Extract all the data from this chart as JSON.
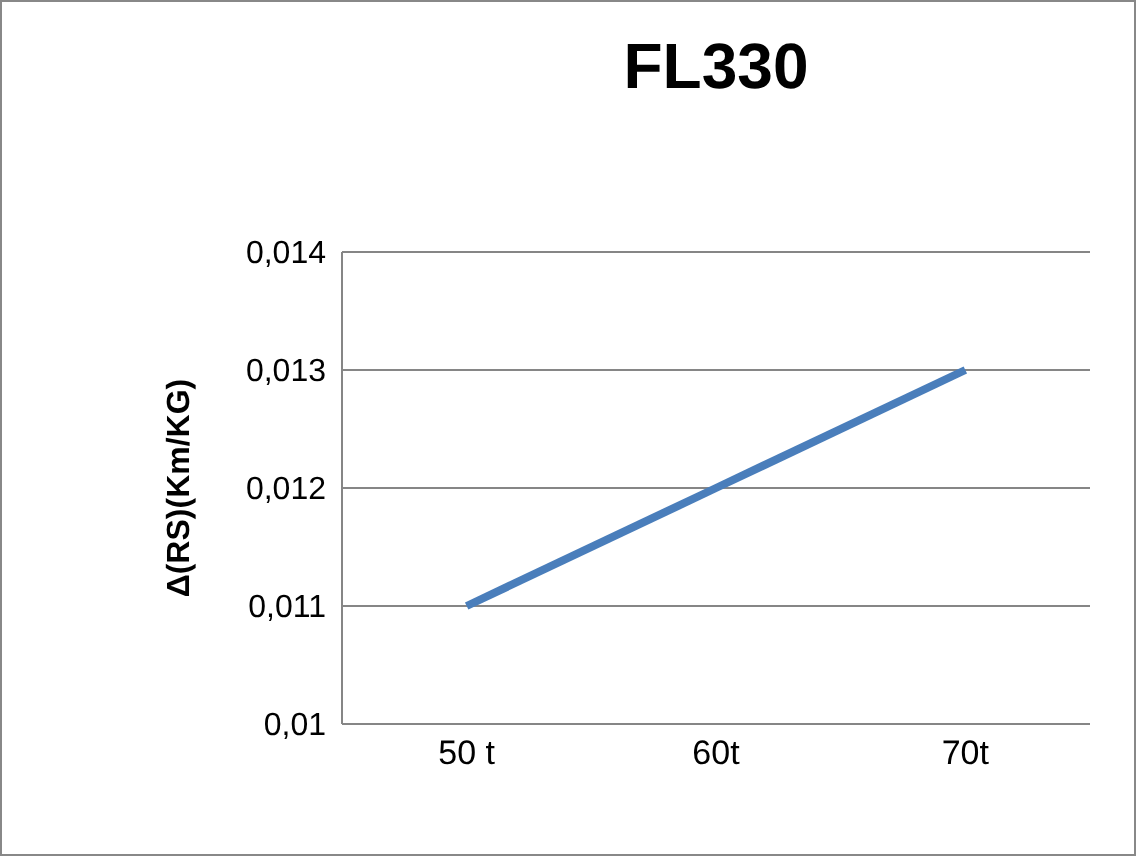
{
  "chart_data": {
    "type": "line",
    "title": "FL330",
    "ylabel": "Δ(RS)(Km/KG)",
    "categories": [
      "50 t",
      "60t",
      "70t"
    ],
    "series": [
      {
        "color": "#4a7ebb",
        "values": [
          0.011,
          0.012,
          0.013
        ]
      }
    ],
    "ylim": [
      0.01,
      0.014
    ],
    "yticks": [
      {
        "value": 0.01,
        "label": "0,01"
      },
      {
        "value": 0.011,
        "label": "0,011"
      },
      {
        "value": 0.012,
        "label": "0,012"
      },
      {
        "value": 0.013,
        "label": "0,013"
      },
      {
        "value": 0.014,
        "label": "0,014"
      }
    ],
    "grid": "y"
  }
}
